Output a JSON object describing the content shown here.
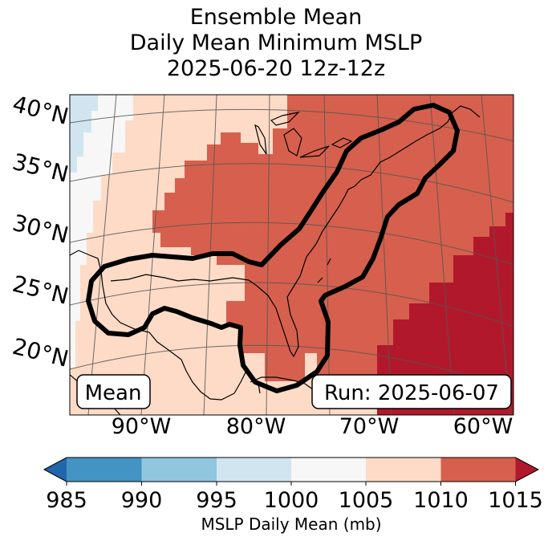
{
  "title": {
    "line1": "Ensemble Mean",
    "line2": "Daily Mean Minimum MSLP",
    "line3": "2025-06-20 12z-12z"
  },
  "map": {
    "lat_labels": [
      "40°N",
      "35°N",
      "30°N",
      "25°N",
      "20°N"
    ],
    "lon_labels": [
      "90°W",
      "80°W",
      "70°W",
      "60°W"
    ],
    "mean_box": "Mean",
    "run_box": "Run: 2025-06-07"
  },
  "colorbar": {
    "label": "MSLP Daily Mean (mb)",
    "ticks": [
      "985",
      "990",
      "995",
      "1000",
      "1005",
      "1010",
      "1015"
    ],
    "colors": {
      "below": "#2166ac",
      "b985_990": "#4393c3",
      "b990_995": "#92c5de",
      "b995_1000": "#d1e5f0",
      "b1000_1005": "#f7f7f7",
      "b1005_1010": "#fddbc7",
      "b1010_1015": "#d6604d",
      "above": "#b2182b"
    }
  }
}
